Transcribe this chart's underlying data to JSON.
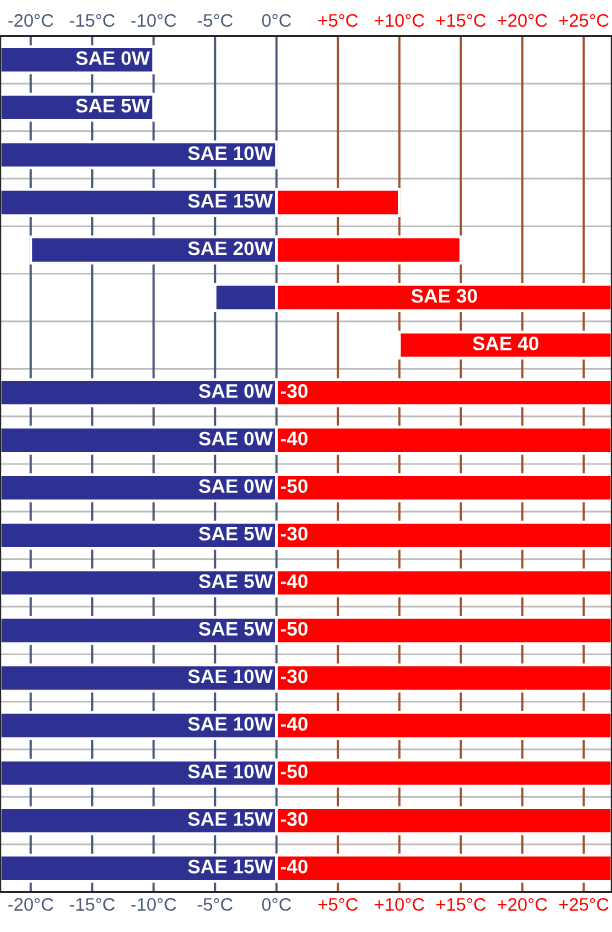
{
  "chart_data": {
    "type": "bar",
    "orientation": "horizontal",
    "categories": [
      "SAE 0W",
      "SAE 5W",
      "SAE 10W",
      "SAE 15W",
      "SAE 20W",
      "SAE 30",
      "SAE 40",
      "SAE 0W",
      "SAE 0W",
      "SAE 0W",
      "SAE 5W",
      "SAE 5W",
      "SAE 5W",
      "SAE 10W",
      "SAE 10W",
      "SAE 10W",
      "SAE 15W",
      "SAE 15W"
    ],
    "series": [
      {
        "color": "#2e3192",
        "values": [
          12.5,
          12.5,
          22.5,
          22.5,
          20,
          5,
          null,
          22.5,
          22.5,
          22.5,
          22.5,
          22.5,
          22.5,
          22.5,
          22.5,
          22.5,
          22.5,
          22.5
        ],
        "base": [
          -22.5,
          -22.5,
          -22.5,
          -22.5,
          -20,
          -5,
          null,
          -22.5,
          -22.5,
          -22.5,
          -22.5,
          -22.5,
          -22.5,
          -22.5,
          -22.5,
          -22.5,
          -22.5,
          -22.5
        ]
      },
      {
        "color": "#ff0000",
        "values": [
          null,
          null,
          null,
          10,
          15,
          27.3,
          17.3,
          27.3,
          27.3,
          27.3,
          27.3,
          27.3,
          27.3,
          27.3,
          27.3,
          27.3,
          27.3,
          27.3
        ],
        "base": [
          null,
          null,
          null,
          0,
          0,
          0,
          10,
          0,
          0,
          0,
          0,
          0,
          0,
          0,
          0,
          0,
          0,
          0
        ]
      }
    ],
    "annotations": [
      "-30",
      "-40",
      "-50",
      "-30",
      "-40",
      "-50",
      "-30",
      "-40",
      "-50",
      "-30",
      "-40"
    ],
    "xlim": [
      -22.5,
      27.3
    ],
    "xticks": [
      {
        "value": -20,
        "label": "-20°C"
      },
      {
        "value": -15,
        "label": "-15°C"
      },
      {
        "value": -10,
        "label": "-10°C"
      },
      {
        "value": -5,
        "label": "-5°C"
      },
      {
        "value": 0,
        "label": "0°C"
      },
      {
        "value": 5,
        "label": "+5°C"
      },
      {
        "value": 10,
        "label": "+10°C"
      },
      {
        "value": 15,
        "label": "+15°C"
      },
      {
        "value": 20,
        "label": "+20°C"
      },
      {
        "value": 25,
        "label": "+25°C"
      }
    ],
    "x2lim": [
      -22.5,
      27.3
    ],
    "x2ticks": [
      {
        "value": -20,
        "label": "-20°C"
      },
      {
        "value": -15,
        "label": "-15°C"
      },
      {
        "value": -10,
        "label": "-10°C"
      },
      {
        "value": -5,
        "label": "-5°C"
      },
      {
        "value": 0,
        "label": "0°C"
      },
      {
        "value": 5,
        "label": "+5°C"
      },
      {
        "value": 10,
        "label": "+10°C"
      },
      {
        "value": 15,
        "label": "+15°C"
      },
      {
        "value": 20,
        "label": "+20°C"
      },
      {
        "value": 25,
        "label": "+25°C"
      }
    ],
    "grid": true
  }
}
